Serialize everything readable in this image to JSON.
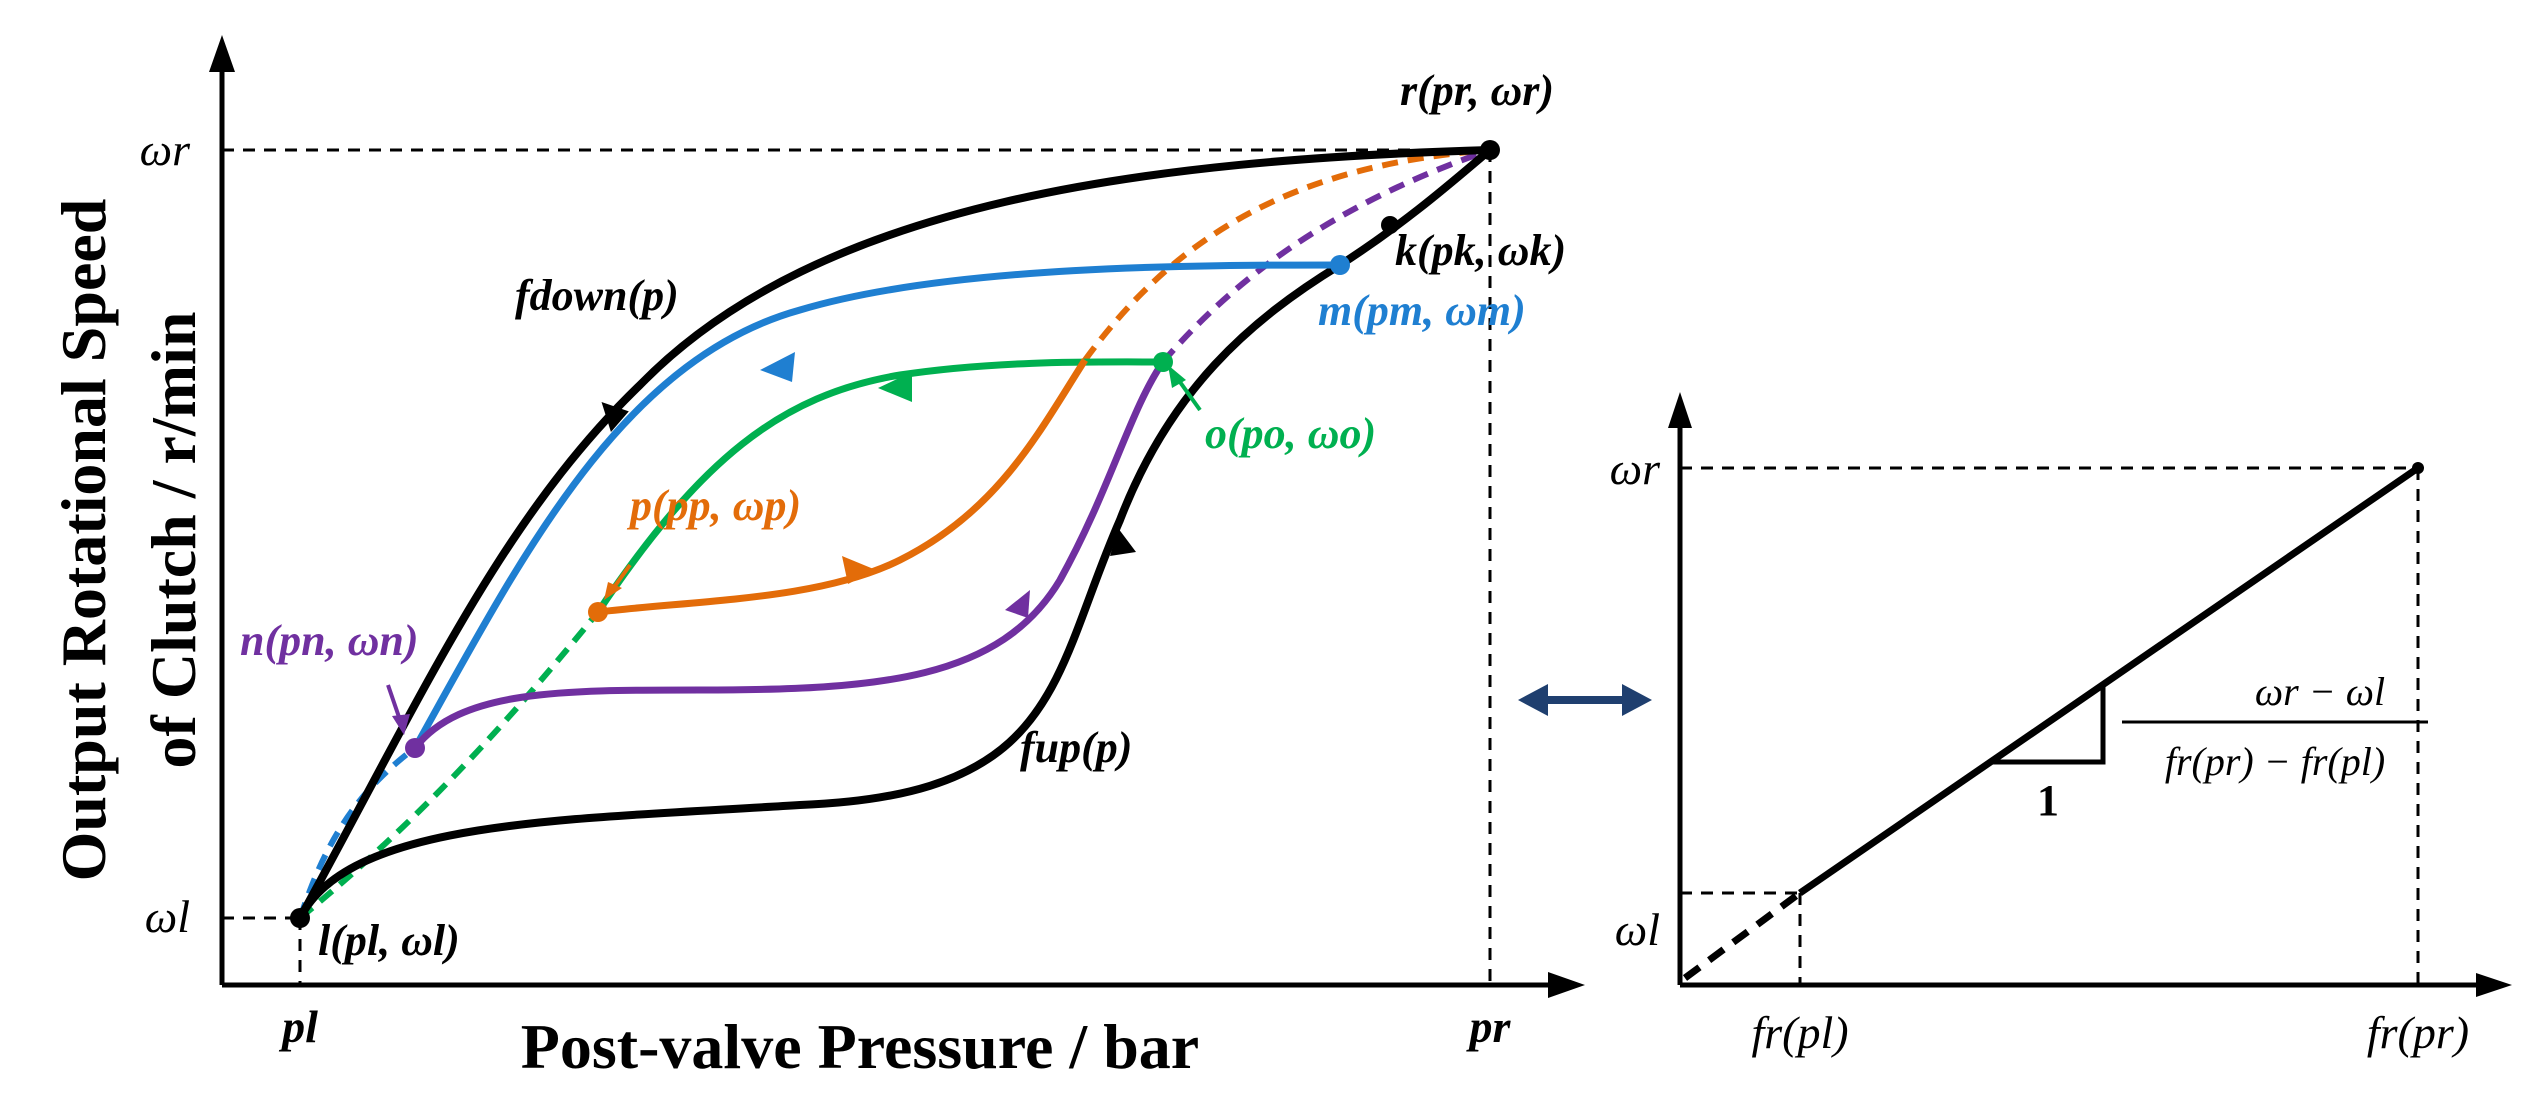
{
  "colors": {
    "black": "#000000",
    "blue": "#1f7fd1",
    "green": "#00b050",
    "orange": "#e36c09",
    "purple": "#7030a0",
    "navy": "#1f3f6f"
  },
  "left_chart": {
    "ylabel_line1": "Output Rotational Speed",
    "ylabel_line2": "of Clutch / r/min",
    "xlabel": "Post-valve Pressure / bar",
    "y_ticks": {
      "omega_r": "ωr",
      "omega_l": "ωl"
    },
    "x_ticks": {
      "p_l": "pl",
      "p_r": "pr"
    },
    "curve_labels": {
      "f_down": "fdown(p)",
      "f_up": "fup(p)"
    },
    "points": {
      "r": "r(pr, ωr)",
      "k": "k(pk, ωk)",
      "m": "m(pm, ωm)",
      "o": "o(po, ωo)",
      "p": "p(pp, ωp)",
      "n": "n(pn, ωn)",
      "l": "l(pl, ωl)"
    }
  },
  "right_chart": {
    "y_ticks": {
      "omega_r": "ωr",
      "omega_l": "ωl"
    },
    "x_ticks": {
      "f_p_l": "fr(pl)",
      "f_p_r": "fr(pr)"
    },
    "slope_run": "1",
    "slope_numerator": "ωr − ωl",
    "slope_denominator": "fr(pr) − fr(pl)"
  },
  "connector": "double-arrow"
}
